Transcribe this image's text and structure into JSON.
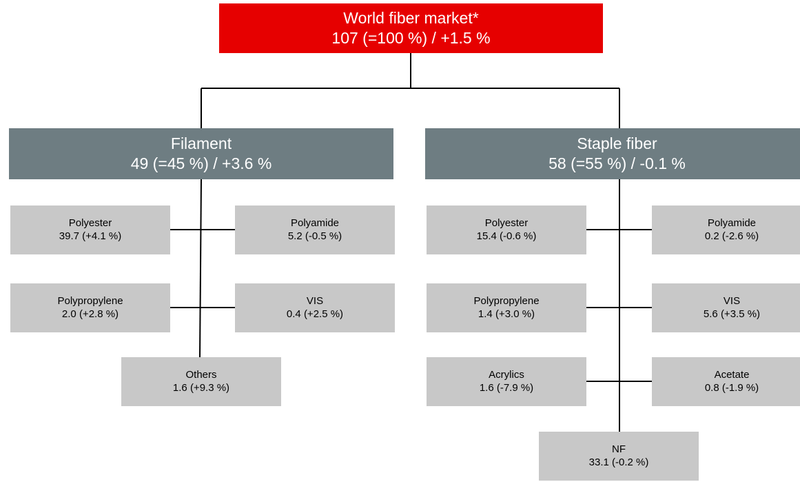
{
  "colors": {
    "root": "#e60000",
    "category": "#6e7d82",
    "leaf": "#c8c8c8",
    "connector": "#000000"
  },
  "root": {
    "title": "World fiber market*",
    "value": "107 (=100 %) / +1.5 %"
  },
  "filament": {
    "title": "Filament",
    "value": "49 (=45 %) / +3.6 %",
    "items": [
      {
        "name": "Polyester",
        "value": "39.7 (+4.1 %)"
      },
      {
        "name": "Polyamide",
        "value": "5.2 (-0.5 %)"
      },
      {
        "name": "Polypropylene",
        "value": "2.0 (+2.8 %)"
      },
      {
        "name": "VIS",
        "value": "0.4 (+2.5 %)"
      },
      {
        "name": "Others",
        "value": "1.6 (+9.3 %)"
      }
    ]
  },
  "staple": {
    "title": "Staple fiber",
    "value": "58 (=55 %) / -0.1 %",
    "items": [
      {
        "name": "Polyester",
        "value": "15.4 (-0.6 %)"
      },
      {
        "name": "Polyamide",
        "value": "0.2 (-2.6 %)"
      },
      {
        "name": "Polypropylene",
        "value": "1.4 (+3.0 %)"
      },
      {
        "name": "VIS",
        "value": "5.6 (+3.5 %)"
      },
      {
        "name": "Acrylics",
        "value": "1.6 (-7.9 %)"
      },
      {
        "name": "Acetate",
        "value": "0.8 (-1.9 %)"
      },
      {
        "name": "NF",
        "value": "33.1 (-0.2 %)"
      }
    ]
  }
}
